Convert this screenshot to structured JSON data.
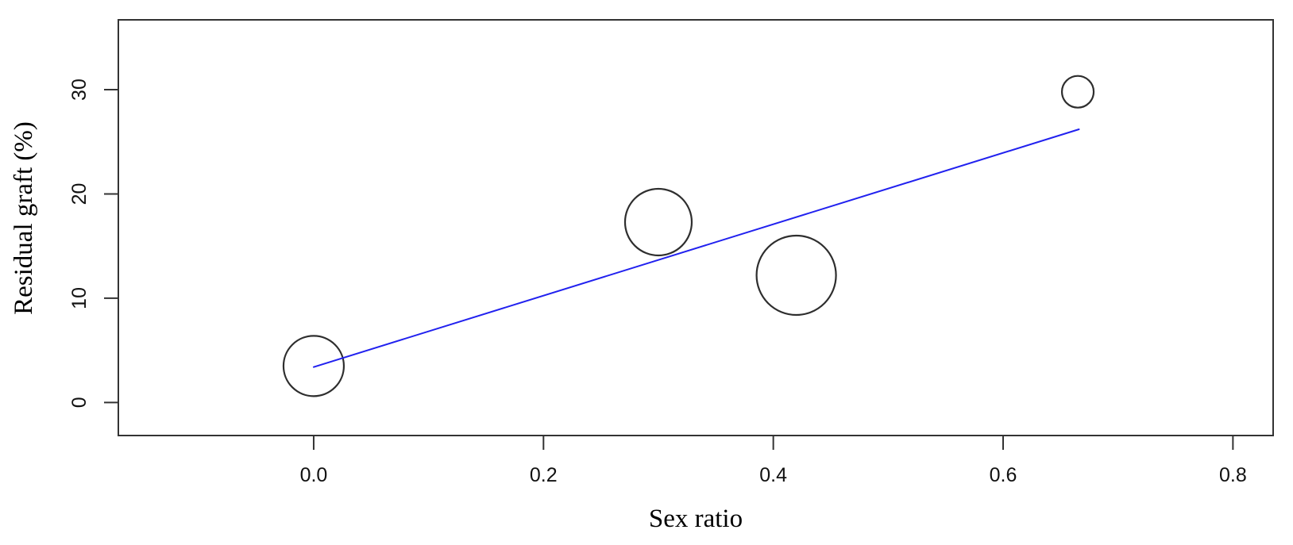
{
  "figure": {
    "background_color": "#ffffff",
    "axis_color": "#333333",
    "text_color": "#111111"
  },
  "chart_data": {
    "type": "scatter",
    "subtype": "bubble-meta-regression",
    "title": "",
    "xlabel": "Sex ratio",
    "ylabel": "Residual graft (%)",
    "xlim": [
      -0.17,
      0.835
    ],
    "ylim": [
      -3.17,
      36.7
    ],
    "grid": false,
    "legend": null,
    "x_ticks": [
      0.0,
      0.2,
      0.4,
      0.6,
      0.8
    ],
    "x_tick_labels": [
      "0.0",
      "0.2",
      "0.4",
      "0.6",
      "0.8"
    ],
    "y_ticks": [
      0,
      10,
      20,
      30
    ],
    "y_tick_labels": [
      "0",
      "10",
      "20",
      "30"
    ],
    "points": [
      {
        "x": 0.0,
        "y": 3.5,
        "radius_px": 38
      },
      {
        "x": 0.3,
        "y": 17.3,
        "radius_px": 42
      },
      {
        "x": 0.42,
        "y": 12.2,
        "radius_px": 50
      },
      {
        "x": 0.665,
        "y": 29.8,
        "radius_px": 20
      }
    ],
    "point_style": {
      "stroke": "#2e2e2e",
      "stroke_width": 2.2,
      "fill": "none"
    },
    "regression_line": {
      "x1": 0.0,
      "y1": 3.4,
      "x2": 0.666,
      "y2": 26.2,
      "color": "#2121ef",
      "stroke_width": 2
    }
  }
}
